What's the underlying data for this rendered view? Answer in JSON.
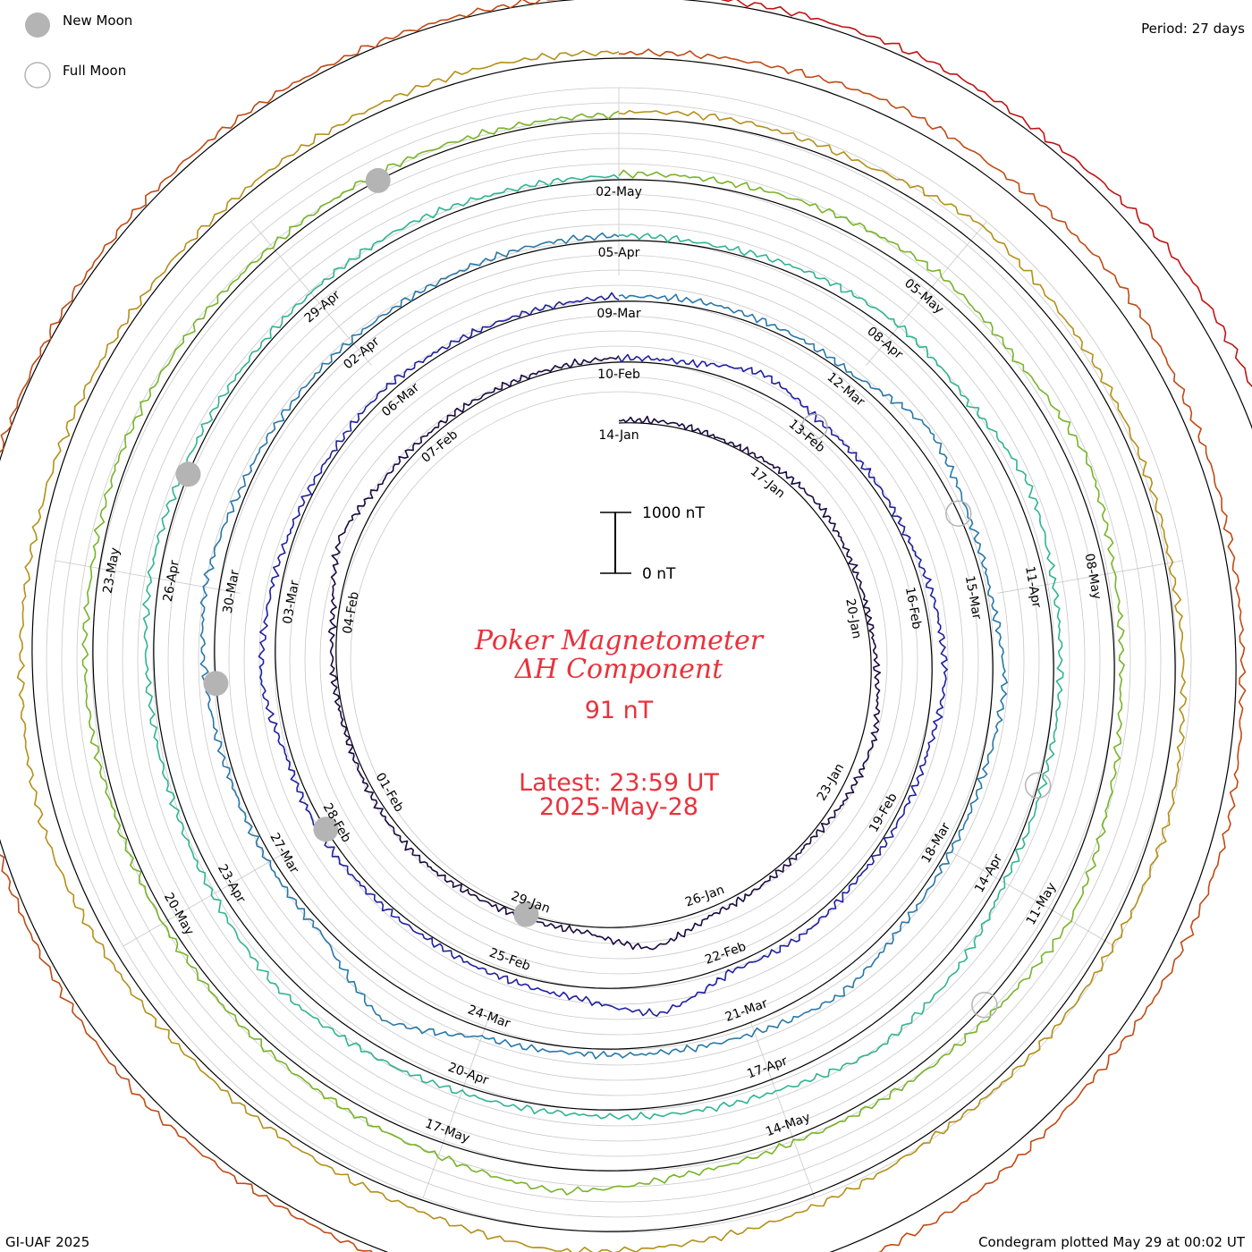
{
  "legend": {
    "new_moon": "New Moon",
    "full_moon": "Full Moon"
  },
  "header": {
    "period": "Period: 27 days"
  },
  "center": {
    "title_line1": "Poker Magnetometer",
    "title_line2": "ΔH Component",
    "value": "91 nT",
    "latest_line1": "Latest: 23:59 UT",
    "latest_line2": "2025-May-28"
  },
  "scale_bar": {
    "top_label": "1000 nT",
    "bottom_label": "0 nT"
  },
  "footer": {
    "credit": "GI-UAF 2025",
    "plotted": "Condegram plotted May 29 at 00:02 UT"
  },
  "colors": {
    "title_red": "#e8323c",
    "moon_gray": "#b4b4b4",
    "grid_gray": "#c8c8c8"
  },
  "chart_data": {
    "type": "line",
    "subtype": "condegram-spiral",
    "period_days": 27,
    "start_date": "14-Jan",
    "end_date": "28-May",
    "direction": "clockwise",
    "y_scale_bar_nT": [
      0,
      1000
    ],
    "date_labels": [
      "14-Jan",
      "17-Jan",
      "20-Jan",
      "23-Jan",
      "26-Jan",
      "29-Jan",
      "01-Feb",
      "04-Feb",
      "07-Feb",
      "10-Feb",
      "13-Feb",
      "16-Feb",
      "19-Feb",
      "22-Feb",
      "25-Feb",
      "28-Feb",
      "03-Mar",
      "06-Mar",
      "09-Mar",
      "12-Mar",
      "15-Mar",
      "18-Mar",
      "21-Mar",
      "24-Mar",
      "27-Mar",
      "30-Mar",
      "02-Apr",
      "05-Apr",
      "08-Apr",
      "11-Apr",
      "14-Apr",
      "17-Apr",
      "20-Apr",
      "23-Apr",
      "26-Apr",
      "29-Apr",
      "02-May",
      "05-May",
      "08-May",
      "11-May",
      "14-May",
      "17-May",
      "20-May",
      "23-May"
    ],
    "series": [
      {
        "color": "#1a0a40",
        "start_day": 0,
        "days": 27,
        "values_nT": [
          40,
          60,
          30,
          80,
          120,
          70,
          50,
          90,
          200,
          150,
          60,
          80,
          120,
          400,
          90,
          60,
          70,
          110,
          80,
          40,
          60,
          90,
          300,
          120,
          80,
          60,
          50,
          70
        ]
      },
      {
        "color": "#2020a0",
        "start_day": 27,
        "days": 27,
        "values_nT": [
          60,
          80,
          300,
          120,
          90,
          70,
          160,
          220,
          100,
          80,
          60,
          140,
          90,
          480,
          180,
          110,
          70,
          90,
          120,
          80,
          250,
          160,
          90,
          70,
          110,
          60,
          50,
          80
        ]
      },
      {
        "color": "#2878a8",
        "start_day": 54,
        "days": 27,
        "values_nT": [
          70,
          110,
          90,
          60,
          320,
          140,
          80,
          200,
          90,
          70,
          120,
          300,
          180,
          110,
          90,
          140,
          600,
          120,
          90,
          80,
          160,
          240,
          110,
          90,
          70,
          60,
          90,
          80
        ]
      },
      {
        "color": "#30b490",
        "start_day": 81,
        "days": 27,
        "values_nT": [
          80,
          60,
          130,
          170,
          90,
          250,
          140,
          110,
          70,
          90,
          280,
          380,
          200,
          140,
          90,
          120,
          180,
          260,
          140,
          90,
          110,
          160,
          100,
          80,
          90,
          130,
          70,
          60
        ]
      },
      {
        "color": "#78b428",
        "start_day": 108,
        "days": 27,
        "values_nT": [
          90,
          120,
          180,
          240,
          140,
          300,
          150,
          110,
          200,
          340,
          180,
          120,
          90,
          160,
          380,
          220,
          150,
          110,
          90,
          70,
          140,
          120,
          160,
          130,
          90,
          110,
          80,
          70
        ]
      },
      {
        "color": "#b49018",
        "start_day": 135,
        "days": 27,
        "values_nT": [
          110,
          150,
          120,
          300,
          180,
          120,
          90,
          140,
          220,
          160,
          120,
          90,
          200,
          280,
          350,
          180,
          120,
          90,
          160,
          260,
          200,
          150,
          120,
          90,
          80,
          110,
          140,
          90
        ]
      },
      {
        "color": "#c04a14",
        "start_day": 162,
        "days": 27,
        "values_nT": [
          80,
          140,
          220,
          180,
          260,
          160,
          120,
          100,
          200,
          180,
          140,
          260,
          300,
          220,
          160,
          120,
          90,
          140,
          100,
          80,
          60,
          50,
          40,
          70,
          90,
          60,
          50,
          40
        ]
      },
      {
        "color": "#c01414",
        "start_day": 189,
        "days": 8,
        "values_nT": [
          60,
          80,
          120,
          90,
          240,
          260,
          300,
          180,
          120
        ]
      }
    ],
    "moon_phases": [
      {
        "type": "new",
        "date": "29-Jan"
      },
      {
        "type": "full",
        "date": "13-Feb"
      },
      {
        "type": "new",
        "date": "28-Feb"
      },
      {
        "type": "full",
        "date": "14-Mar"
      },
      {
        "type": "new",
        "date": "29-Mar"
      },
      {
        "type": "full",
        "date": "13-Apr"
      },
      {
        "type": "new",
        "date": "27-Apr"
      },
      {
        "type": "full",
        "date": "12-May"
      },
      {
        "type": "new",
        "date": "27-May"
      }
    ]
  }
}
